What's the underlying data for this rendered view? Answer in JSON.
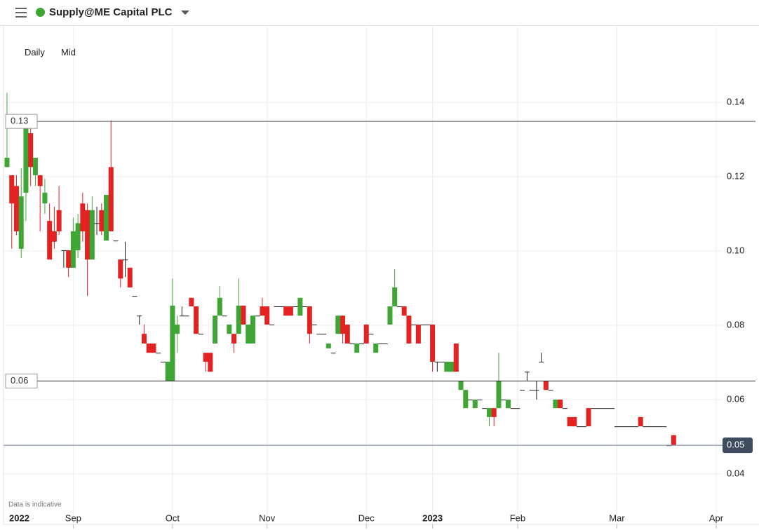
{
  "header": {
    "title": "Supply@ME Capital PLC"
  },
  "toolbar": [
    "Daily",
    "Mid"
  ],
  "chart_data": {
    "type": "candlestick",
    "note": "Data is indicative",
    "categories": [
      "2022",
      null,
      null,
      null,
      null,
      null,
      null,
      null,
      null,
      null,
      null,
      null,
      null,
      null,
      "Sep",
      null,
      null,
      null,
      null,
      null,
      null,
      null,
      null,
      null,
      null,
      null,
      null,
      null,
      null,
      null,
      null,
      null,
      null,
      null,
      null,
      "Oct",
      null,
      null,
      null,
      null,
      null,
      null,
      null,
      null,
      null,
      null,
      null,
      null,
      null,
      null,
      null,
      null,
      null,
      null,
      null,
      "Nov",
      null,
      null,
      null,
      null,
      null,
      null,
      null,
      null,
      null,
      null,
      null,
      null,
      null,
      null,
      null,
      null,
      null,
      null,
      null,
      null,
      "Dec",
      null,
      null,
      null,
      null,
      null,
      null,
      null,
      null,
      null,
      null,
      null,
      null,
      null,
      "2023",
      null,
      null,
      null,
      null,
      null,
      null,
      null,
      null,
      null,
      null,
      null,
      null,
      null,
      null,
      null,
      null,
      null,
      "Feb",
      null,
      null,
      null,
      null,
      null,
      null,
      null,
      null,
      null,
      null,
      null,
      null,
      null,
      null,
      null,
      null,
      null,
      null,
      null,
      null,
      "Mar",
      null,
      null,
      null,
      null,
      null,
      null,
      null,
      null,
      null,
      null,
      null,
      null,
      null,
      null,
      null,
      null,
      null,
      null,
      null,
      null,
      "Apr"
    ],
    "open": [
      0.1226,
      0.1204,
      0.1175,
      0.1006,
      0.1157,
      0.1317,
      0.1204,
      0.1204,
      0.1128,
      0.1081,
      0.1053,
      0.111,
      0.1002,
      0.1002,
      0.0955,
      0.1002,
      0.1128,
      0.111,
      0.0977,
      0.1075,
      0.111,
      0.1028,
      0.1226,
      0.1028,
      0.0977,
      0.0977,
      0.0955,
      0.0879,
      0.0826,
      0.0777,
      0.0751,
      0.0751,
      0.0726,
      0.0702,
      0.0651,
      0.0651,
      0.0777,
      0.0826,
      0.0826,
      0.0874,
      0.0851,
      0.0777,
      0.0726,
      0.0726,
      0.0751,
      0.0826,
      0.0826,
      0.0777,
      0.0777,
      0.0777,
      0.0853,
      0.0751,
      0.0751,
      0.0826,
      0.0851,
      0.0851,
      0.0802,
      0.0851,
      0.0851,
      0.0851,
      0.0851,
      0.0851,
      0.0826,
      0.0851,
      0.0851,
      0.0802,
      0.0777,
      0.0777,
      0.0738,
      0.0726,
      0.0777,
      0.0826,
      0.0802,
      0.0751,
      0.0726,
      0.0751,
      0.0802,
      0.0777,
      0.0726,
      0.0751,
      0.0751,
      0.0802,
      0.0851,
      0.0851,
      0.0851,
      0.0826,
      0.0802,
      0.0802,
      0.0802,
      0.0802,
      0.0802,
      0.0702,
      0.0702,
      0.0675,
      0.0675,
      0.0751,
      0.0626,
      0.0577,
      0.06,
      0.0577,
      0.06,
      0.0577,
      0.0553,
      0.0577,
      0.0577,
      0.06,
      0.0577,
      0.0577,
      0.0577,
      0.0626,
      0.0675,
      0.0626,
      0.0626,
      0.0702,
      0.0651,
      0.0626,
      0.0577,
      0.06,
      0.0577,
      0.0553,
      0.0553,
      0.0528,
      0.0528,
      0.0577,
      0.0577,
      0.0577,
      0.0577,
      0.0577,
      0.0577,
      0.0528,
      0.0528,
      0.0528,
      0.0528,
      0.0528,
      0.0553,
      0.0528,
      0.0528,
      0.0528,
      0.0528,
      0.0528,
      0.0477,
      0.0504,
      null,
      null,
      null,
      null,
      null,
      null,
      null,
      null,
      null
    ],
    "high": [
      0.1426,
      0.1204,
      0.1204,
      0.1223,
      0.136,
      0.134,
      0.1251,
      0.1204,
      0.1194,
      0.1128,
      0.1119,
      0.1175,
      0.1002,
      0.1002,
      0.109,
      0.11,
      0.1157,
      0.1128,
      0.1147,
      0.1119,
      0.1128,
      0.1151,
      0.1351,
      0.1028,
      0.0977,
      0.1025,
      0.0955,
      0.0879,
      0.0826,
      0.0802,
      0.0751,
      0.0751,
      0.0726,
      0.0702,
      0.0702,
      0.0926,
      0.0826,
      0.0851,
      0.0826,
      0.0874,
      0.0851,
      0.0777,
      0.0726,
      0.0726,
      0.0826,
      0.0906,
      0.0826,
      0.0802,
      0.0777,
      0.0926,
      0.0853,
      0.0802,
      0.0826,
      0.0826,
      0.0874,
      0.0851,
      0.0802,
      0.0851,
      0.0851,
      0.0851,
      0.0851,
      0.0851,
      0.0874,
      0.0851,
      0.0851,
      0.0802,
      0.0777,
      0.0777,
      0.0751,
      0.0726,
      0.0826,
      0.0826,
      0.0802,
      0.0751,
      0.0751,
      0.0751,
      0.0802,
      0.0777,
      0.0751,
      0.0751,
      0.0751,
      0.0851,
      0.0951,
      0.0851,
      0.0851,
      0.0826,
      0.0802,
      0.0802,
      0.0802,
      0.0802,
      0.0802,
      0.0702,
      0.0702,
      0.0702,
      0.0702,
      0.0751,
      0.0651,
      0.0626,
      0.06,
      0.06,
      0.06,
      0.0577,
      0.0577,
      0.0577,
      0.0726,
      0.06,
      0.06,
      0.0577,
      0.0577,
      0.0626,
      0.0675,
      0.0626,
      0.0651,
      0.0726,
      0.0651,
      0.0626,
      0.06,
      0.06,
      0.0577,
      0.0553,
      0.0553,
      0.0528,
      0.0528,
      0.0577,
      0.0577,
      0.0577,
      0.0577,
      0.0577,
      0.0577,
      0.0528,
      0.0528,
      0.0528,
      0.0528,
      0.0528,
      0.0553,
      0.0528,
      0.0528,
      0.0528,
      0.0528,
      0.0528,
      0.0477,
      0.0504,
      null,
      null,
      null,
      null,
      null,
      null,
      null,
      null,
      null
    ],
    "low": [
      0.1226,
      0.1006,
      0.1043,
      0.0981,
      0.1081,
      0.1175,
      0.1175,
      0.1053,
      0.11,
      0.0977,
      0.1006,
      0.1043,
      0.0955,
      0.093,
      0.0955,
      0.0981,
      0.1025,
      0.0879,
      0.0977,
      0.1043,
      0.1043,
      0.1028,
      0.1053,
      0.1028,
      0.0902,
      0.093,
      0.0902,
      0.0879,
      0.0802,
      0.0751,
      0.0726,
      0.0726,
      0.0726,
      0.0702,
      0.0651,
      0.0651,
      0.0726,
      0.0826,
      0.0826,
      0.0851,
      0.0777,
      0.0777,
      0.0675,
      0.0675,
      0.0751,
      0.0826,
      0.0826,
      0.0777,
      0.0726,
      0.0777,
      0.0802,
      0.0751,
      0.0751,
      0.0826,
      0.0826,
      0.0802,
      0.0802,
      0.0851,
      0.0851,
      0.0826,
      0.0826,
      0.0851,
      0.0826,
      0.0851,
      0.0751,
      0.0802,
      0.0777,
      0.0777,
      0.0738,
      0.0726,
      0.0777,
      0.0751,
      0.0751,
      0.0751,
      0.0726,
      0.0751,
      0.0751,
      0.0777,
      0.0726,
      0.0751,
      0.0751,
      0.0802,
      0.0851,
      0.0851,
      0.0826,
      0.0751,
      0.0802,
      0.0751,
      0.0802,
      0.0802,
      0.0675,
      0.0675,
      0.0702,
      0.0675,
      0.0675,
      0.0675,
      0.0626,
      0.0577,
      0.06,
      0.0577,
      0.06,
      0.0577,
      0.0528,
      0.0528,
      0.0577,
      0.06,
      0.0577,
      0.0577,
      0.0577,
      0.0626,
      0.0651,
      0.0626,
      0.06,
      0.0702,
      0.0626,
      0.0626,
      0.0577,
      0.0577,
      0.0577,
      0.0528,
      0.0528,
      0.0528,
      0.0528,
      0.0528,
      0.0577,
      0.0577,
      0.0577,
      0.0577,
      0.0577,
      0.0528,
      0.0528,
      0.0528,
      0.0528,
      0.0528,
      0.0528,
      0.0528,
      0.0528,
      0.0528,
      0.0528,
      0.0528,
      0.0477,
      0.0477,
      null,
      null,
      null,
      null,
      null,
      null,
      null,
      null,
      null
    ],
    "close": [
      0.1251,
      0.1128,
      0.1053,
      0.1147,
      0.1349,
      0.1226,
      0.1251,
      0.1175,
      0.1157,
      0.0977,
      0.1025,
      0.1053,
      0.1002,
      0.0955,
      0.1053,
      0.1075,
      0.1053,
      0.0977,
      0.111,
      0.1075,
      0.1053,
      0.1151,
      0.1053,
      0.1028,
      0.0926,
      0.0977,
      0.0902,
      0.0879,
      0.0826,
      0.0751,
      0.0726,
      0.0726,
      0.0726,
      0.0702,
      0.0702,
      0.0853,
      0.0802,
      0.0826,
      0.0826,
      0.0851,
      0.0777,
      0.0777,
      0.0702,
      0.0675,
      0.0826,
      0.0874,
      0.0826,
      0.0802,
      0.0751,
      0.0853,
      0.0802,
      0.0802,
      0.0826,
      0.0826,
      0.0826,
      0.0802,
      0.0802,
      0.0851,
      0.0851,
      0.0826,
      0.0826,
      0.0851,
      0.0874,
      0.0851,
      0.0777,
      0.0802,
      0.0777,
      0.0777,
      0.0751,
      0.0726,
      0.0826,
      0.0777,
      0.0751,
      0.0751,
      0.0751,
      0.0751,
      0.0751,
      0.0777,
      0.0751,
      0.0751,
      0.0751,
      0.0851,
      0.0902,
      0.0851,
      0.0826,
      0.0751,
      0.0802,
      0.0751,
      0.0802,
      0.0802,
      0.0702,
      0.0702,
      0.0702,
      0.0702,
      0.0702,
      0.0675,
      0.0651,
      0.0626,
      0.06,
      0.06,
      0.06,
      0.0577,
      0.0577,
      0.0553,
      0.0651,
      0.06,
      0.06,
      0.0577,
      0.0577,
      0.0626,
      0.0675,
      0.0626,
      0.0626,
      0.0702,
      0.0626,
      0.0626,
      0.06,
      0.0577,
      0.0577,
      0.0528,
      0.0528,
      0.0528,
      0.0528,
      0.0528,
      0.0577,
      0.0577,
      0.0577,
      0.0577,
      0.0577,
      0.0528,
      0.0528,
      0.0528,
      0.0528,
      0.0528,
      0.0528,
      0.0528,
      0.0528,
      0.0528,
      0.0528,
      0.0528,
      0.0477,
      0.0477,
      null,
      null,
      null,
      null,
      null,
      null,
      null,
      null,
      null
    ],
    "up_color": "#3fa535",
    "down_color": "#e32222",
    "flat_color": "#222222",
    "ylim": [
      0.0298,
      0.1604
    ],
    "yticks": [
      0.04,
      0.06,
      0.08,
      {
        "value": 0.1,
        "label": "0.10"
      },
      0.12,
      0.14
    ],
    "grid": true,
    "reference_lines": [
      {
        "value": 0.1349,
        "label": "0.13"
      },
      {
        "value": 0.065,
        "label": "0.06"
      }
    ],
    "last_price": {
      "value": 0.0477,
      "label": "0.05"
    }
  }
}
